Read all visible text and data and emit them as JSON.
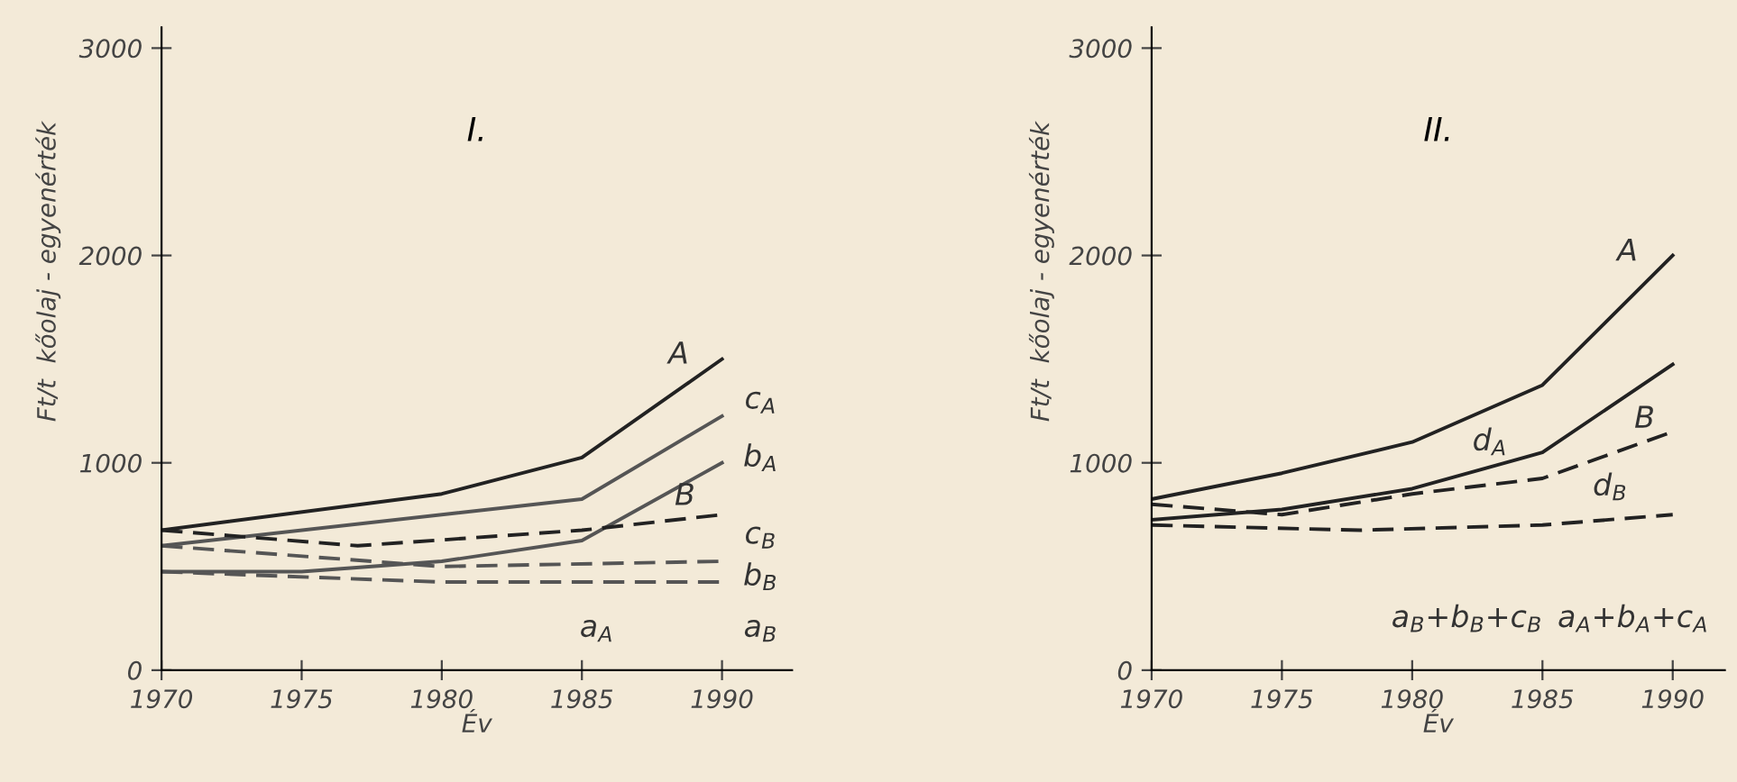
{
  "chart_data": [
    {
      "type": "line",
      "title": "I.",
      "xlabel": "Év",
      "ylabel": "Ft/t  kőolaj - egyenérték",
      "xlim": [
        1970,
        1992.5
      ],
      "ylim": [
        0,
        3100
      ],
      "xticks": [
        1970,
        1975,
        1980,
        1985,
        1990
      ],
      "yticks": [
        0,
        1000,
        2000,
        3000
      ],
      "grid": false,
      "legend": false,
      "series": [
        {
          "color": "#222222",
          "line_style": "solid",
          "x": [
            1970,
            1980,
            1985,
            1990
          ],
          "values": [
            675,
            850,
            1025,
            1500
          ]
        },
        {
          "color": "#555555",
          "line_style": "solid",
          "x": [
            1970,
            1985,
            1990
          ],
          "values": [
            600,
            825,
            1225
          ]
        },
        {
          "color": "#555555",
          "line_style": "solid",
          "x": [
            1970,
            1975,
            1980,
            1985,
            1990
          ],
          "values": [
            475,
            475,
            525,
            625,
            1000
          ]
        },
        {
          "color": "#222222",
          "line_style": "dashed",
          "x": [
            1970,
            1977,
            1985,
            1990
          ],
          "values": [
            675,
            600,
            675,
            750
          ]
        },
        {
          "color": "#555555",
          "line_style": "dashed",
          "x": [
            1970,
            1980,
            1990
          ],
          "values": [
            600,
            500,
            525
          ]
        },
        {
          "color": "#555555",
          "line_style": "dashed",
          "x": [
            1970,
            1980,
            1990
          ],
          "values": [
            475,
            425,
            425
          ]
        }
      ],
      "annotations": [
        "A",
        "c$_{A}$",
        "b$_{A}$",
        "B",
        "c$_{B}$",
        "b$_{B}$",
        "a$_{B}$",
        "a$_{A}$"
      ]
    },
    {
      "type": "line",
      "title": "II.",
      "xlabel": "Év",
      "ylabel": "Ft/t  kőolaj - egyenérték",
      "xlim": [
        1970,
        1992
      ],
      "ylim": [
        0,
        3100
      ],
      "xticks": [
        1970,
        1975,
        1980,
        1985,
        1990
      ],
      "yticks": [
        0,
        1000,
        2000,
        3000
      ],
      "grid": false,
      "legend": false,
      "series": [
        {
          "color": "#222222",
          "line_style": "solid",
          "x": [
            1970,
            1975,
            1980,
            1985,
            1990
          ],
          "values": [
            825,
            950,
            1100,
            1375,
            2000
          ]
        },
        {
          "color": "#222222",
          "line_style": "solid",
          "x": [
            1970,
            1975,
            1980,
            1985,
            1990
          ],
          "values": [
            725,
            775,
            875,
            1050,
            1475
          ]
        },
        {
          "color": "#222222",
          "line_style": "dashed",
          "x": [
            1970,
            1975,
            1980,
            1985,
            1990
          ],
          "values": [
            800,
            750,
            850,
            925,
            1150
          ]
        },
        {
          "color": "#222222",
          "line_style": "dashed",
          "x": [
            1970,
            1978,
            1985,
            1990
          ],
          "values": [
            700,
            675,
            700,
            750
          ]
        }
      ],
      "annotations": [
        "A",
        "B",
        "d$_{A}$",
        "d$_{B}$",
        "a$_{B}$+b$_{B}$+c$_{B}$",
        "a$_{A}$+b$_{A}$+c$_{A}$"
      ]
    }
  ]
}
